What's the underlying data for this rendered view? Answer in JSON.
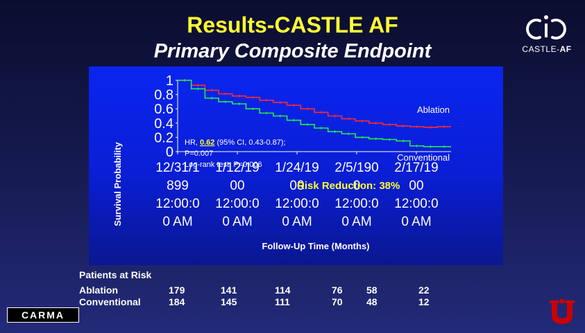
{
  "slide": {
    "title": "Results-CASTLE AF",
    "subtitle": "Primary Composite Endpoint"
  },
  "logos": {
    "castle_prefix": "CASTLE-",
    "castle_suffix": "AF",
    "carma": "CARMA"
  },
  "chart_data": {
    "type": "line",
    "title": "",
    "ylabel": "Survival Probability",
    "xlabel": "Follow-Up Time (Months)",
    "ylim": [
      0,
      1
    ],
    "yticks": [
      "0",
      "0.2",
      "0.4",
      "0.6",
      "0.8",
      "1"
    ],
    "xticks": [
      [
        "12/31/1",
        "899",
        "12:00:0",
        "0 AM"
      ],
      [
        "1/12/19",
        "00",
        "12:00:0",
        "0 AM"
      ],
      [
        "1/24/19",
        "00",
        "12:00:0",
        "0 AM"
      ],
      [
        "2/5/190",
        "0",
        "12:00:0",
        "0 AM"
      ],
      [
        "2/17/19",
        "00",
        "12:00:0",
        "0 AM"
      ]
    ],
    "x": [
      0,
      3,
      6,
      9,
      12,
      15,
      18,
      21,
      24,
      27,
      30,
      33,
      36,
      39,
      42,
      45,
      48,
      51,
      54,
      57,
      60
    ],
    "xlim": [
      0,
      60
    ],
    "series": [
      {
        "name": "Ablation",
        "color": "#ff2a2a",
        "values": [
          1.0,
          0.93,
          0.86,
          0.81,
          0.78,
          0.76,
          0.72,
          0.69,
          0.65,
          0.6,
          0.55,
          0.5,
          0.46,
          0.43,
          0.4,
          0.38,
          0.36,
          0.35,
          0.34,
          0.35,
          0.35
        ]
      },
      {
        "name": "Conventional",
        "color": "#22ee44",
        "values": [
          1.0,
          0.88,
          0.75,
          0.7,
          0.67,
          0.6,
          0.54,
          0.5,
          0.44,
          0.38,
          0.33,
          0.28,
          0.25,
          0.2,
          0.18,
          0.17,
          0.15,
          0.08,
          0.07,
          0.07,
          0.07
        ]
      }
    ],
    "annotations": {
      "hr_prefix": "HR, ",
      "hr_value": "0.62",
      "hr_suffix": " (95% CI, 0.43-0.87);",
      "p_value": "P=0.007",
      "log_rank": "Log-rank test: P=0.006",
      "risk_reduction": "Risk Reduction: 38%"
    }
  },
  "patients_at_risk": {
    "title": "Patients at Risk",
    "rows": [
      {
        "label": "Ablation",
        "values": [
          "179",
          "141",
          "114",
          "76",
          "58",
          "22"
        ]
      },
      {
        "label": "Conventional",
        "values": [
          "184",
          "145",
          "111",
          "70",
          "48",
          "12"
        ]
      }
    ]
  }
}
